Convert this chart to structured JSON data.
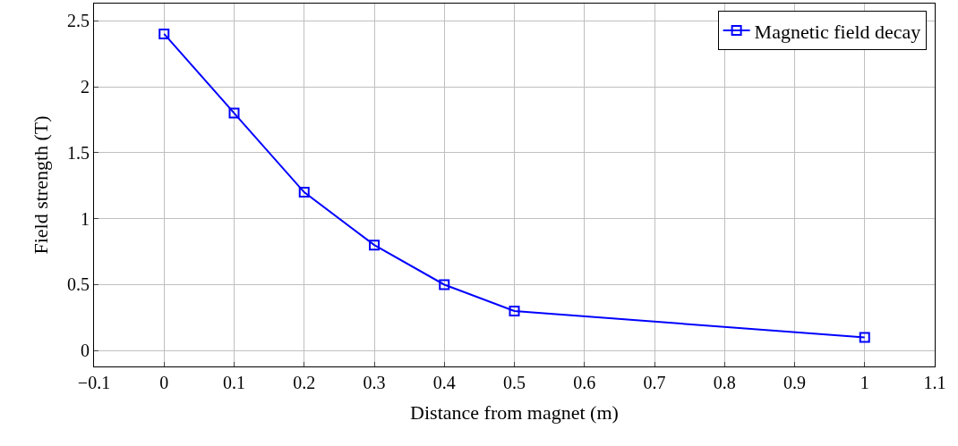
{
  "chart_data": {
    "type": "line",
    "xlabel": "Distance from magnet (m)",
    "ylabel": "Field strength (T)",
    "x": [
      0,
      0.1,
      0.2,
      0.3,
      0.4,
      0.5,
      1
    ],
    "series": [
      {
        "name": "Magnetic field decay",
        "color": "#0000ff",
        "values": [
          2.4,
          1.8,
          1.2,
          0.8,
          0.5,
          0.3,
          0.1
        ]
      }
    ],
    "xlim": [
      -0.1,
      1.1
    ],
    "xticks": [
      {
        "value": -0.1,
        "label": "−0.1"
      },
      0,
      0.1,
      0.2,
      0.3,
      0.4,
      0.5,
      0.6,
      0.7,
      0.8,
      0.9,
      1,
      1.1
    ],
    "ylim": [
      -0.12,
      2.63
    ],
    "yticks": [
      0,
      0.5,
      1,
      1.5,
      2,
      2.5
    ],
    "grid": true,
    "legend": "top right",
    "marker": "square",
    "line_style": "solid"
  }
}
